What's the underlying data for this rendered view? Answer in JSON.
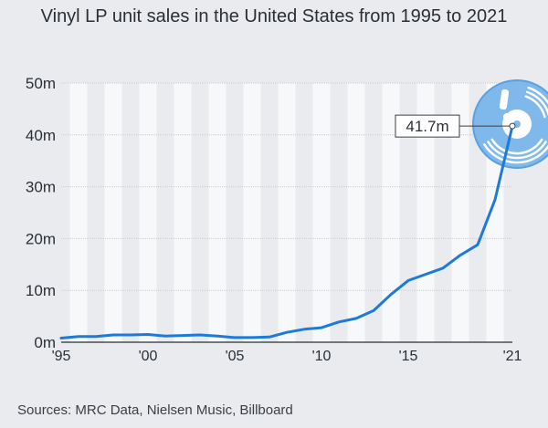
{
  "chart_data": {
    "type": "line",
    "title": "Vinyl LP unit sales in the United States from 1995 to 2021",
    "xlabel": "",
    "ylabel": "",
    "x": [
      1995,
      1996,
      1997,
      1998,
      1999,
      2000,
      2001,
      2002,
      2003,
      2004,
      2005,
      2006,
      2007,
      2008,
      2009,
      2010,
      2011,
      2012,
      2013,
      2014,
      2015,
      2016,
      2017,
      2018,
      2019,
      2020,
      2021
    ],
    "series": [
      {
        "name": "Vinyl LP unit sales",
        "unit": "million units",
        "values": [
          0.8,
          1.1,
          1.1,
          1.4,
          1.4,
          1.5,
          1.2,
          1.3,
          1.4,
          1.2,
          0.9,
          0.9,
          1.0,
          1.9,
          2.5,
          2.8,
          3.9,
          4.6,
          6.1,
          9.2,
          11.9,
          13.1,
          14.3,
          16.8,
          18.8,
          27.5,
          41.7
        ]
      }
    ],
    "ylim": [
      0,
      50
    ],
    "yticks": [
      0,
      10,
      20,
      30,
      40,
      50
    ],
    "ytick_labels": [
      "0m",
      "10m",
      "20m",
      "30m",
      "40m",
      "50m"
    ],
    "xticks": [
      1995,
      2000,
      2005,
      2010,
      2015,
      2021
    ],
    "xtick_labels": [
      "'95",
      "'00",
      "'05",
      "'10",
      "'15",
      "'21"
    ],
    "annotation": {
      "x": 2021,
      "value": 41.7,
      "label": "41.7m"
    },
    "grid": true,
    "line_color": "#1e7ad8"
  },
  "source_text": "Sources: MRC Data, Nielsen Music, Billboard",
  "decoration": {
    "record_icon": "vinyl-record-icon",
    "disc_color": "#7fb8ea",
    "disc_edge_color": "#5a9fe0"
  }
}
